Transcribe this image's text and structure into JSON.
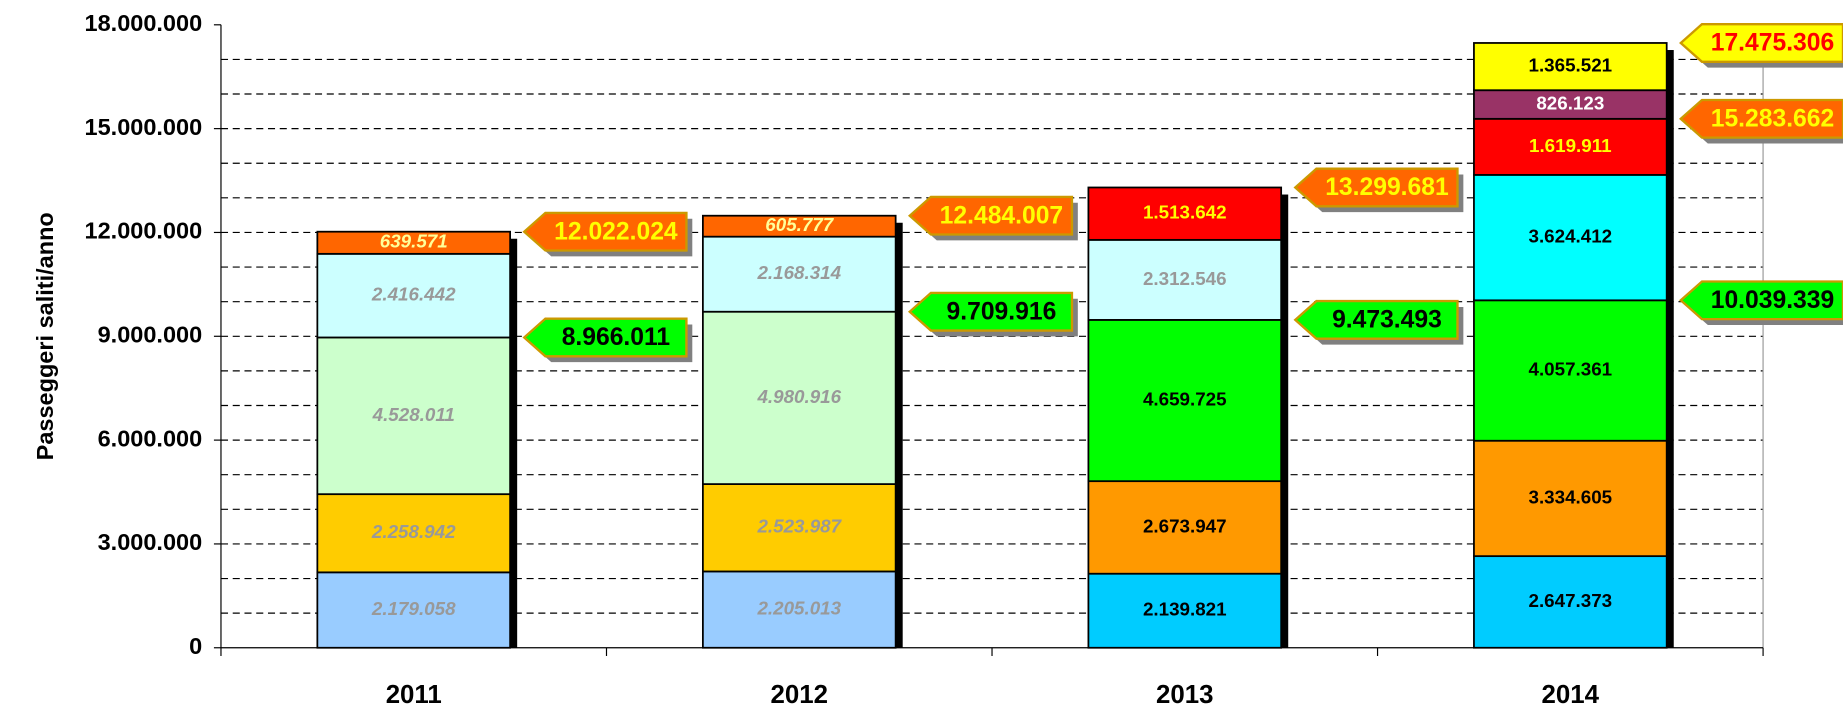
{
  "chart_data": {
    "type": "stacked_bar",
    "ylabel": "Passeggeri saliti/anno",
    "categories": [
      "2011",
      "2012",
      "2013",
      "2014"
    ],
    "ylim": [
      0,
      18000000
    ],
    "yticks": [
      0,
      {
        "value": 3000000,
        "label": "3.000.000"
      },
      {
        "value": 6000000,
        "label": "6.000.000"
      },
      {
        "value": 9000000,
        "label": "9.000.000"
      },
      {
        "value": 12000000,
        "label": "12.000.000"
      },
      {
        "value": 15000000,
        "label": "15.000.000"
      },
      {
        "value": 18000000,
        "label": "18.000.000"
      }
    ],
    "grid_yticks": [
      1000000,
      2000000,
      3000000,
      4000000,
      5000000,
      6000000,
      7000000,
      8000000,
      9000000,
      10000000,
      11000000,
      12000000,
      13000000,
      14000000,
      15000000,
      16000000,
      17000000
    ],
    "grid": true,
    "label_italic": [
      true,
      true,
      false,
      false
    ],
    "series": [
      {
        "values": [
          2179058,
          2205013,
          2139821,
          2647373
        ],
        "value_labels": [
          "2.179.058",
          "2.205.013",
          "2.139.821",
          "2.647.373"
        ],
        "colors": [
          "#99ccff",
          "#99ccff",
          "#00ccff",
          "#00ccff"
        ],
        "label_colors": [
          "#999999",
          "#999999",
          "#000000",
          "#000000"
        ]
      },
      {
        "values": [
          2258942,
          2523987,
          2673947,
          3334605
        ],
        "value_labels": [
          "2.258.942",
          "2.523.987",
          "2.673.947",
          "3.334.605"
        ],
        "colors": [
          "#ffcc00",
          "#ffcc00",
          "#ff9900",
          "#ff9900"
        ],
        "label_colors": [
          "#999999",
          "#999999",
          "#000000",
          "#000000"
        ]
      },
      {
        "values": [
          4528011,
          4980916,
          4659725,
          4057361
        ],
        "value_labels": [
          "4.528.011",
          "4.980.916",
          "4.659.725",
          "4.057.361"
        ],
        "colors": [
          "#ccffcc",
          "#ccffcc",
          "#00ff00",
          "#00ff00"
        ],
        "label_colors": [
          "#999999",
          "#999999",
          "#000000",
          "#000000"
        ]
      },
      {
        "values": [
          2416442,
          2168314,
          2312546,
          3624412
        ],
        "value_labels": [
          "2.416.442",
          "2.168.314",
          "2.312.546",
          "3.624.412"
        ],
        "colors": [
          "#ccffff",
          "#ccffff",
          "#ccffff",
          "#00ffff"
        ],
        "label_colors": [
          "#999999",
          "#999999",
          "#999999",
          "#000000"
        ]
      },
      {
        "values": [
          639571,
          605777,
          1513642,
          1619911
        ],
        "value_labels": [
          "639.571",
          "605.777",
          "1.513.642",
          "1.619.911"
        ],
        "colors": [
          "#ff6600",
          "#ff6600",
          "#ff0000",
          "#ff0000"
        ],
        "label_colors": [
          "#ffff99",
          "#ffff99",
          "#ffff00",
          "#ffff00"
        ]
      },
      {
        "values": [
          null,
          null,
          null,
          826123
        ],
        "value_labels": [
          null,
          null,
          null,
          "826.123"
        ],
        "colors": [
          null,
          null,
          null,
          "#993366"
        ],
        "label_colors": [
          null,
          null,
          null,
          "#ffffff"
        ]
      },
      {
        "values": [
          null,
          null,
          null,
          1365521
        ],
        "value_labels": [
          null,
          null,
          null,
          "1.365.521"
        ],
        "colors": [
          null,
          null,
          null,
          "#ffff00"
        ],
        "label_colors": [
          null,
          null,
          null,
          "#000000"
        ]
      }
    ],
    "callouts": [
      {
        "category": "2011",
        "value": 12022024,
        "label": "12.022.024",
        "fill": "#ff6600",
        "text_color": "#ffff00"
      },
      {
        "category": "2011",
        "value": 8966011,
        "label": "8.966.011",
        "fill": "#00ff00",
        "text_color": "#000000"
      },
      {
        "category": "2012",
        "value": 12484007,
        "label": "12.484.007",
        "fill": "#ff6600",
        "text_color": "#ffff00"
      },
      {
        "category": "2012",
        "value": 9709916,
        "label": "9.709.916",
        "fill": "#00ff00",
        "text_color": "#000000"
      },
      {
        "category": "2013",
        "value": 13299681,
        "label": "13.299.681",
        "fill": "#ff6600",
        "text_color": "#ffff00"
      },
      {
        "category": "2013",
        "value": 9473493,
        "label": "9.473.493",
        "fill": "#00ff00",
        "text_color": "#000000"
      },
      {
        "category": "2014",
        "value": 17475306,
        "label": "17.475.306",
        "fill": "#ffff00",
        "text_color": "#ff0000"
      },
      {
        "category": "2014",
        "value": 15283662,
        "label": "15.283.662",
        "fill": "#ff6600",
        "text_color": "#ffff00"
      },
      {
        "category": "2014",
        "value": 10039339,
        "label": "10.039.339",
        "fill": "#00ff00",
        "text_color": "#000000"
      }
    ]
  }
}
